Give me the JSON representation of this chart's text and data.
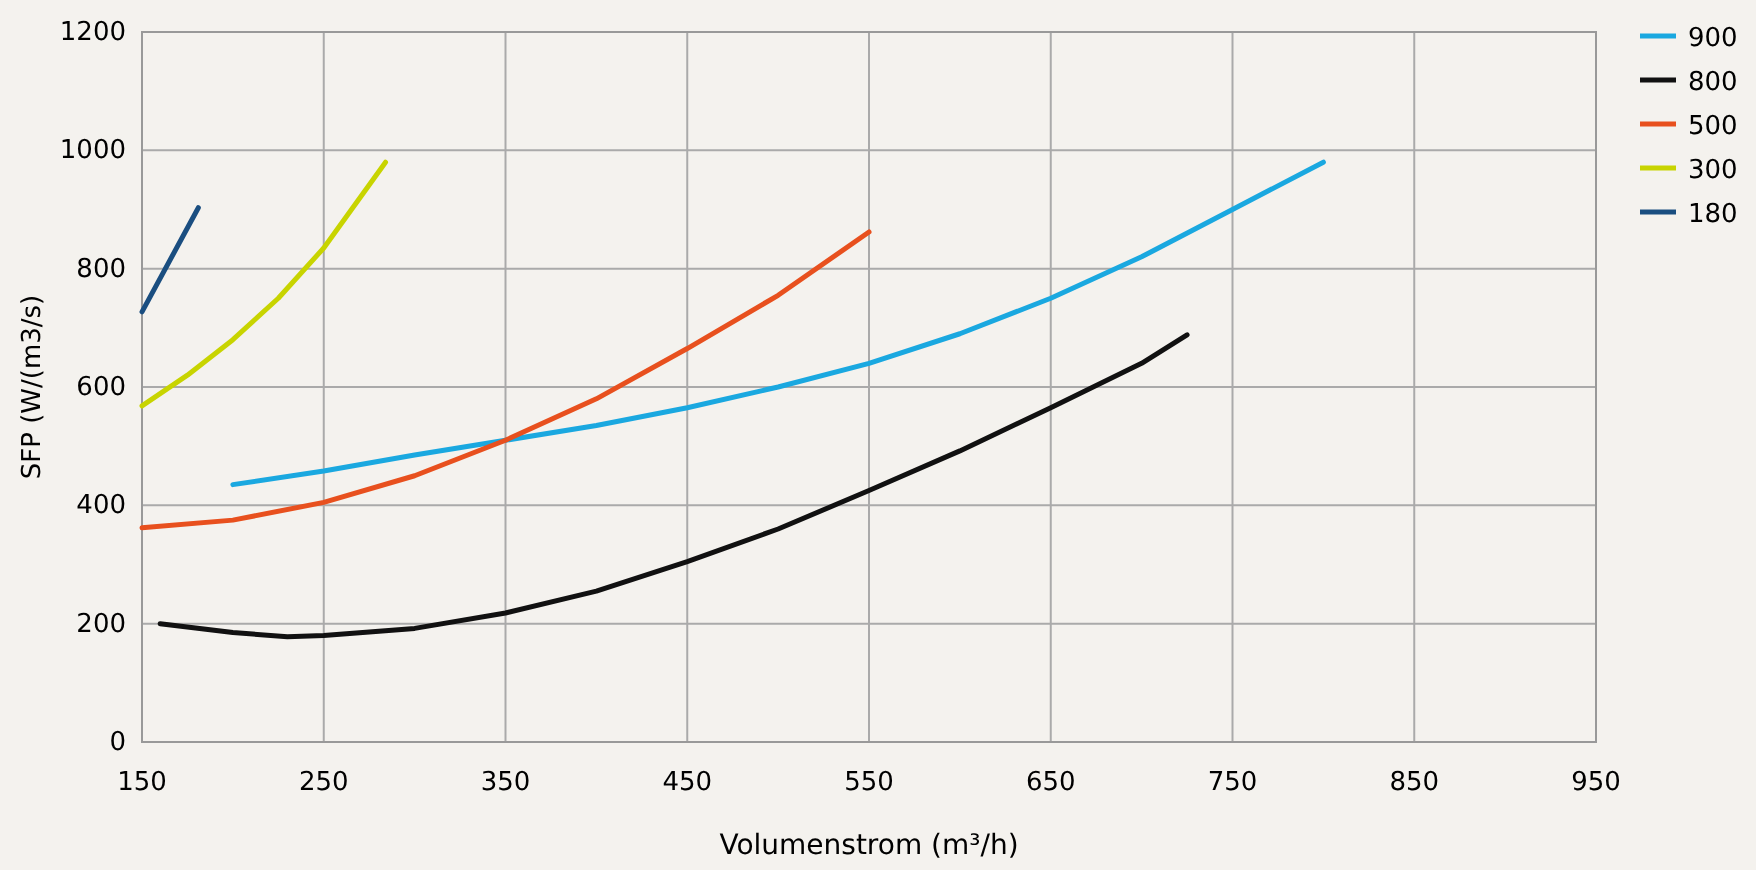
{
  "chart_data": {
    "type": "line",
    "xlabel": "Volumenstrom (m³/h)",
    "ylabel": "SFP (W/(m3/s)",
    "xlim": [
      150,
      950
    ],
    "ylim": [
      0,
      1200
    ],
    "xticks": [
      150,
      250,
      350,
      450,
      550,
      650,
      750,
      850,
      950
    ],
    "yticks": [
      0,
      200,
      400,
      600,
      800,
      1000,
      1200
    ],
    "grid": true,
    "legend": "right",
    "marker": "none",
    "line_style": "solid",
    "series": [
      {
        "name": "900",
        "color": "#1aa8e0",
        "x": [
          200,
          250,
          300,
          350,
          400,
          450,
          500,
          550,
          600,
          650,
          700,
          750,
          800
        ],
        "values": [
          435,
          458,
          485,
          510,
          535,
          565,
          600,
          640,
          690,
          750,
          820,
          900,
          980
        ]
      },
      {
        "name": "800",
        "color": "#111111",
        "x": [
          160,
          200,
          230,
          250,
          300,
          350,
          400,
          450,
          500,
          550,
          600,
          650,
          700,
          725
        ],
        "values": [
          200,
          185,
          178,
          180,
          192,
          218,
          255,
          305,
          360,
          425,
          492,
          565,
          640,
          688
        ]
      },
      {
        "name": "500",
        "color": "#e8501e",
        "x": [
          150,
          200,
          250,
          300,
          350,
          400,
          450,
          500,
          550
        ],
        "values": [
          362,
          375,
          405,
          450,
          510,
          580,
          665,
          755,
          862
        ]
      },
      {
        "name": "300",
        "color": "#c8d400",
        "x": [
          150,
          175,
          200,
          225,
          250,
          284
        ],
        "values": [
          568,
          620,
          680,
          750,
          835,
          980
        ]
      },
      {
        "name": "180",
        "color": "#1a4e80",
        "x": [
          150,
          181
        ],
        "values": [
          727,
          903
        ]
      }
    ]
  }
}
